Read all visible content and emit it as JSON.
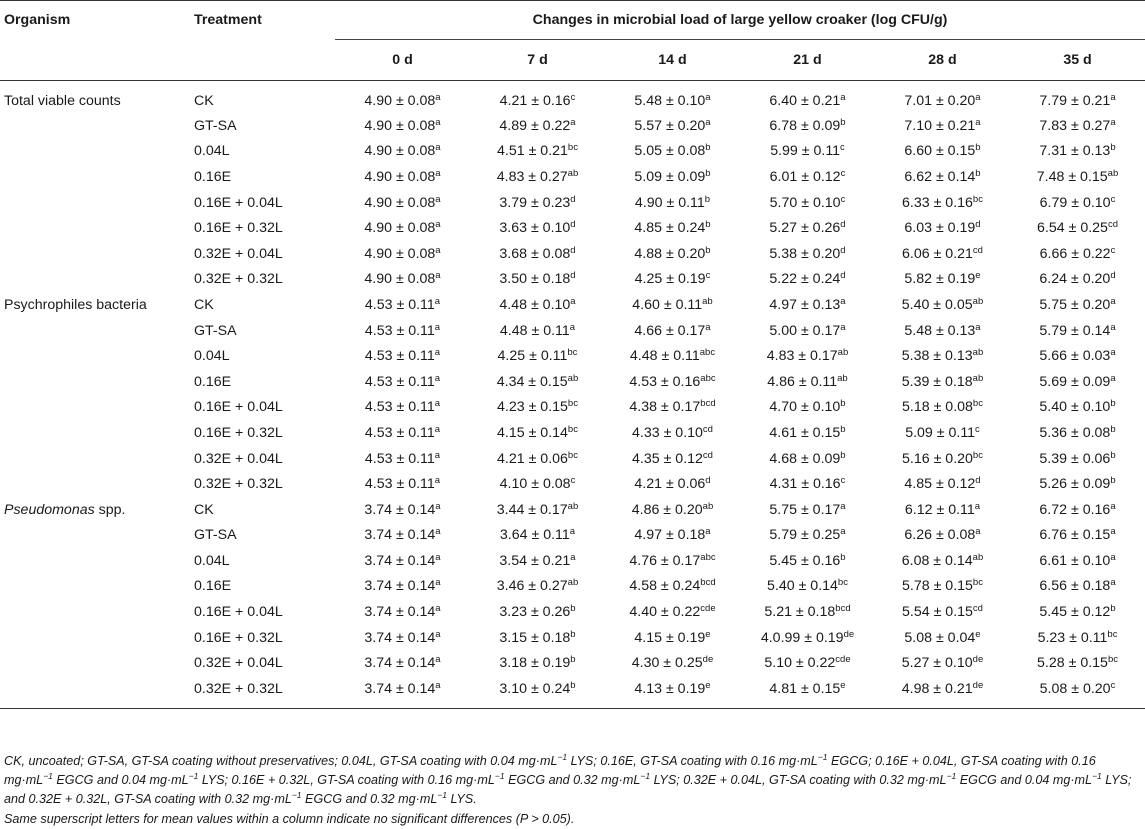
{
  "header": {
    "organism": "Organism",
    "treatment": "Treatment",
    "title": "Changes in microbial load of large yellow croaker (log CFU/g)",
    "days": [
      "0 d",
      "7 d",
      "14 d",
      "21 d",
      "28 d",
      "35 d"
    ]
  },
  "groups": [
    {
      "organism": "Total viable counts",
      "italic": false,
      "rows": [
        {
          "treatment": "CK",
          "cells": [
            [
              "4.90 ± 0.08",
              "a"
            ],
            [
              "4.21 ± 0.16",
              "c"
            ],
            [
              "5.48 ± 0.10",
              "a"
            ],
            [
              "6.40 ± 0.21",
              "a"
            ],
            [
              "7.01 ± 0.20",
              "a"
            ],
            [
              "7.79 ± 0.21",
              "a"
            ]
          ]
        },
        {
          "treatment": "GT-SA",
          "cells": [
            [
              "4.90 ± 0.08",
              "a"
            ],
            [
              "4.89 ± 0.22",
              "a"
            ],
            [
              "5.57 ± 0.20",
              "a"
            ],
            [
              "6.78 ± 0.09",
              "b"
            ],
            [
              "7.10 ± 0.21",
              "a"
            ],
            [
              "7.83 ± 0.27",
              "a"
            ]
          ]
        },
        {
          "treatment": "0.04L",
          "cells": [
            [
              "4.90 ± 0.08",
              "a"
            ],
            [
              "4.51 ± 0.21",
              "bc"
            ],
            [
              "5.05 ± 0.08",
              "b"
            ],
            [
              "5.99 ± 0.11",
              "c"
            ],
            [
              "6.60 ± 0.15",
              "b"
            ],
            [
              "7.31 ± 0.13",
              "b"
            ]
          ]
        },
        {
          "treatment": "0.16E",
          "cells": [
            [
              "4.90 ± 0.08",
              "a"
            ],
            [
              "4.83 ± 0.27",
              "ab"
            ],
            [
              "5.09 ± 0.09",
              "b"
            ],
            [
              "6.01 ± 0.12",
              "c"
            ],
            [
              "6.62 ± 0.14",
              "b"
            ],
            [
              "7.48 ± 0.15",
              "ab"
            ]
          ]
        },
        {
          "treatment": "0.16E + 0.04L",
          "cells": [
            [
              "4.90 ± 0.08",
              "a"
            ],
            [
              "3.79 ± 0.23",
              "d"
            ],
            [
              "4.90 ± 0.11",
              "b"
            ],
            [
              "5.70 ± 0.10",
              "c"
            ],
            [
              "6.33 ± 0.16",
              "bc"
            ],
            [
              "6.79 ± 0.10",
              "c"
            ]
          ]
        },
        {
          "treatment": "0.16E + 0.32L",
          "cells": [
            [
              "4.90 ± 0.08",
              "a"
            ],
            [
              "3.63 ± 0.10",
              "d"
            ],
            [
              "4.85 ± 0.24",
              "b"
            ],
            [
              "5.27 ± 0.26",
              "d"
            ],
            [
              "6.03 ± 0.19",
              "d"
            ],
            [
              "6.54 ± 0.25",
              "cd"
            ]
          ]
        },
        {
          "treatment": "0.32E + 0.04L",
          "cells": [
            [
              "4.90 ± 0.08",
              "a"
            ],
            [
              "3.68 ± 0.08",
              "d"
            ],
            [
              "4.88 ± 0.20",
              "b"
            ],
            [
              "5.38 ± 0.20",
              "d"
            ],
            [
              "6.06 ± 0.21",
              "cd"
            ],
            [
              "6.66 ± 0.22",
              "c"
            ]
          ]
        },
        {
          "treatment": "0.32E + 0.32L",
          "cells": [
            [
              "4.90 ± 0.08",
              "a"
            ],
            [
              "3.50 ± 0.18",
              "d"
            ],
            [
              "4.25 ± 0.19",
              "c"
            ],
            [
              "5.22 ± 0.24",
              "d"
            ],
            [
              "5.82 ± 0.19",
              "e"
            ],
            [
              "6.24 ± 0.20",
              "d"
            ]
          ]
        }
      ]
    },
    {
      "organism": "Psychrophiles bacteria",
      "italic": false,
      "rows": [
        {
          "treatment": "CK",
          "cells": [
            [
              "4.53 ± 0.11",
              "a"
            ],
            [
              "4.48 ± 0.10",
              "a"
            ],
            [
              "4.60 ± 0.11",
              "ab"
            ],
            [
              "4.97 ± 0.13",
              "a"
            ],
            [
              "5.40 ± 0.05",
              "ab"
            ],
            [
              "5.75 ± 0.20",
              "a"
            ]
          ]
        },
        {
          "treatment": "GT-SA",
          "cells": [
            [
              "4.53 ± 0.11",
              "a"
            ],
            [
              "4.48 ± 0.11",
              "a"
            ],
            [
              "4.66 ± 0.17",
              "a"
            ],
            [
              "5.00 ± 0.17",
              "a"
            ],
            [
              "5.48 ± 0.13",
              "a"
            ],
            [
              "5.79 ± 0.14",
              "a"
            ]
          ]
        },
        {
          "treatment": "0.04L",
          "cells": [
            [
              "4.53 ± 0.11",
              "a"
            ],
            [
              "4.25 ± 0.11",
              "bc"
            ],
            [
              "4.48 ± 0.11",
              "abc"
            ],
            [
              "4.83 ± 0.17",
              "ab"
            ],
            [
              "5.38 ± 0.13",
              "ab"
            ],
            [
              "5.66 ± 0.03",
              "a"
            ]
          ]
        },
        {
          "treatment": "0.16E",
          "cells": [
            [
              "4.53 ± 0.11",
              "a"
            ],
            [
              "4.34 ± 0.15",
              "ab"
            ],
            [
              "4.53 ± 0.16",
              "abc"
            ],
            [
              "4.86 ± 0.11",
              "ab"
            ],
            [
              "5.39 ± 0.18",
              "ab"
            ],
            [
              "5.69 ± 0.09",
              "a"
            ]
          ]
        },
        {
          "treatment": "0.16E + 0.04L",
          "cells": [
            [
              "4.53 ± 0.11",
              "a"
            ],
            [
              "4.23 ± 0.15",
              "bc"
            ],
            [
              "4.38 ± 0.17",
              "bcd"
            ],
            [
              "4.70 ± 0.10",
              "b"
            ],
            [
              "5.18 ± 0.08",
              "bc"
            ],
            [
              "5.40 ± 0.10",
              "b"
            ]
          ]
        },
        {
          "treatment": "0.16E + 0.32L",
          "cells": [
            [
              "4.53 ± 0.11",
              "a"
            ],
            [
              "4.15 ± 0.14",
              "bc"
            ],
            [
              "4.33 ± 0.10",
              "cd"
            ],
            [
              "4.61 ± 0.15",
              "b"
            ],
            [
              "5.09 ± 0.11",
              "c"
            ],
            [
              "5.36 ± 0.08",
              "b"
            ]
          ]
        },
        {
          "treatment": "0.32E + 0.04L",
          "cells": [
            [
              "4.53 ± 0.11",
              "a"
            ],
            [
              "4.21 ± 0.06",
              "bc"
            ],
            [
              "4.35 ± 0.12",
              "cd"
            ],
            [
              "4.68 ± 0.09",
              "b"
            ],
            [
              "5.16 ± 0.20",
              "bc"
            ],
            [
              "5.39 ± 0.06",
              "b"
            ]
          ]
        },
        {
          "treatment": "0.32E + 0.32L",
          "cells": [
            [
              "4.53 ± 0.11",
              "a"
            ],
            [
              "4.10 ± 0.08",
              "c"
            ],
            [
              "4.21 ± 0.06",
              "d"
            ],
            [
              "4.31 ± 0.16",
              "c"
            ],
            [
              "4.85 ± 0.12",
              "d"
            ],
            [
              "5.26 ± 0.09",
              "b"
            ]
          ]
        }
      ]
    },
    {
      "organism": "Pseudomonas",
      "organism_suffix": " spp.",
      "italic": true,
      "rows": [
        {
          "treatment": "CK",
          "cells": [
            [
              "3.74 ± 0.14",
              "a"
            ],
            [
              "3.44 ± 0.17",
              "ab"
            ],
            [
              "4.86 ± 0.20",
              "ab"
            ],
            [
              "5.75 ± 0.17",
              "a"
            ],
            [
              "6.12 ± 0.11",
              "a"
            ],
            [
              "6.72 ± 0.16",
              "a"
            ]
          ]
        },
        {
          "treatment": "GT-SA",
          "cells": [
            [
              "3.74 ± 0.14",
              "a"
            ],
            [
              "3.64 ± 0.11",
              "a"
            ],
            [
              "4.97 ± 0.18",
              "a"
            ],
            [
              "5.79 ± 0.25",
              "a"
            ],
            [
              "6.26 ± 0.08",
              "a"
            ],
            [
              "6.76 ± 0.15",
              "a"
            ]
          ]
        },
        {
          "treatment": "0.04L",
          "cells": [
            [
              "3.74 ± 0.14",
              "a"
            ],
            [
              "3.54 ± 0.21",
              "a"
            ],
            [
              "4.76 ± 0.17",
              "abc"
            ],
            [
              "5.45 ± 0.16",
              "b"
            ],
            [
              "6.08 ± 0.14",
              "ab"
            ],
            [
              "6.61 ± 0.10",
              "a"
            ]
          ]
        },
        {
          "treatment": "0.16E",
          "cells": [
            [
              "3.74 ± 0.14",
              "a"
            ],
            [
              "3.46 ± 0.27",
              "ab"
            ],
            [
              "4.58 ± 0.24",
              "bcd"
            ],
            [
              "5.40 ± 0.14",
              "bc"
            ],
            [
              "5.78 ± 0.15",
              "bc"
            ],
            [
              "6.56 ± 0.18",
              "a"
            ]
          ]
        },
        {
          "treatment": "0.16E + 0.04L",
          "cells": [
            [
              "3.74 ± 0.14",
              "a"
            ],
            [
              "3.23 ± 0.26",
              "b"
            ],
            [
              "4.40 ± 0.22",
              "cde"
            ],
            [
              "5.21 ± 0.18",
              "bcd"
            ],
            [
              "5.54 ± 0.15",
              "cd"
            ],
            [
              "5.45 ± 0.12",
              "b"
            ]
          ]
        },
        {
          "treatment": "0.16E + 0.32L",
          "cells": [
            [
              "3.74 ± 0.14",
              "a"
            ],
            [
              "3.15 ± 0.18",
              "b"
            ],
            [
              "4.15 ± 0.19",
              "e"
            ],
            [
              "4.0.99 ± 0.19",
              "de"
            ],
            [
              "5.08 ± 0.04",
              "e"
            ],
            [
              "5.23 ± 0.11",
              "bc"
            ]
          ]
        },
        {
          "treatment": "0.32E + 0.04L",
          "cells": [
            [
              "3.74 ± 0.14",
              "a"
            ],
            [
              "3.18 ± 0.19",
              "b"
            ],
            [
              "4.30 ± 0.25",
              "de"
            ],
            [
              "5.10 ± 0.22",
              "cde"
            ],
            [
              "5.27 ± 0.10",
              "de"
            ],
            [
              "5.28 ± 0.15",
              "bc"
            ]
          ]
        },
        {
          "treatment": "0.32E + 0.32L",
          "cells": [
            [
              "3.74 ± 0.14",
              "a"
            ],
            [
              "3.10 ± 0.24",
              "b"
            ],
            [
              "4.13 ± 0.19",
              "e"
            ],
            [
              "4.81 ± 0.15",
              "e"
            ],
            [
              "4.98 ± 0.21",
              "de"
            ],
            [
              "5.08 ± 0.20",
              "c"
            ]
          ]
        }
      ]
    }
  ],
  "footnote": {
    "line1_html": "CK, uncoated; GT-SA, GT-SA coating without preservatives; 0.04L, GT-SA coating with 0.04 mg·mL<sup>−1</sup> LYS; 0.16E, GT-SA coating with 0.16 mg·mL<sup>−1</sup> EGCG; 0.16E + 0.04L, GT-SA coating with 0.16 mg·mL<sup>−1</sup> EGCG and 0.04 mg·mL<sup>−1</sup> LYS; 0.16E + 0.32L, GT-SA coating with 0.16 mg·mL<sup>−1</sup> EGCG and 0.32 mg·mL<sup>−1</sup> LYS; 0.32E + 0.04L, GT-SA coating with 0.32 mg·mL<sup>−1</sup> EGCG and 0.04 mg·mL<sup>−1</sup> LYS; and 0.32E + 0.32L, GT-SA coating with 0.32 mg·mL<sup>−1</sup> EGCG and 0.32 mg·mL<sup>−1</sup> LYS.",
    "line2": "Same superscript letters for mean values within a column indicate no significant differences (P > 0.05)."
  }
}
